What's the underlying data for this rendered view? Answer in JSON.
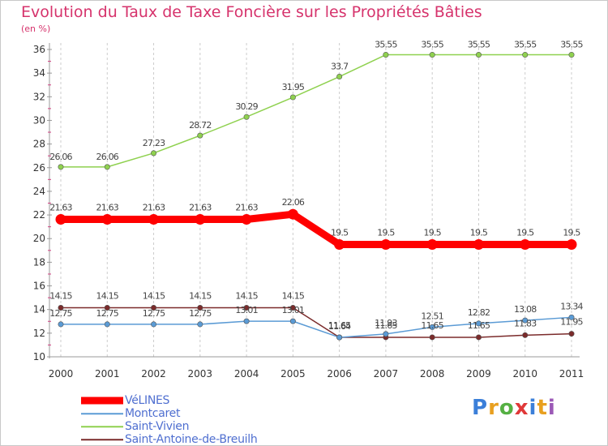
{
  "title": "Evolution du Taux de Taxe Foncière sur les Propriétés Bâties",
  "unit_label": "(en %)",
  "brand": {
    "letters": [
      "P",
      "r",
      "o",
      "x",
      "i",
      "t",
      "i"
    ],
    "colors": [
      "#3b7fd9",
      "#e8a020",
      "#55b043",
      "#e03838",
      "#3b7fd9",
      "#e8a020",
      "#9b59b6"
    ]
  },
  "chart_data": {
    "type": "line",
    "x": [
      "2000",
      "2001",
      "2002",
      "2003",
      "2004",
      "2005",
      "2006",
      "2007",
      "2008",
      "2009",
      "2010",
      "2011"
    ],
    "ylim": [
      10,
      36
    ],
    "yticks": [
      "10",
      "12",
      "14",
      "16",
      "18",
      "20",
      "22",
      "24",
      "26",
      "28",
      "30",
      "32",
      "34",
      "36"
    ],
    "grid": "vertical dashed",
    "legend_position": "bottom-left",
    "series": [
      {
        "name": "VéLINES",
        "color": "#ff0000",
        "values": [
          21.63,
          21.63,
          21.63,
          21.63,
          21.63,
          22.06,
          19.5,
          19.5,
          19.5,
          19.5,
          19.5,
          19.5
        ],
        "labels": [
          "21.63",
          "21.63",
          "21.63",
          "21.63",
          "21.63",
          "22.06",
          "19.5",
          "19.5",
          "19.5",
          "19.5",
          "19.5",
          "19.5"
        ]
      },
      {
        "name": "Montcaret",
        "color": "#5b9bd5",
        "values": [
          12.75,
          12.75,
          12.75,
          12.75,
          13.01,
          13.01,
          11.64,
          11.93,
          12.51,
          12.82,
          13.08,
          13.34
        ],
        "labels": [
          "12.75",
          "12.75",
          "12.75",
          "12.75",
          "13.01",
          "13.01",
          "11.64",
          "11.93",
          "12.51",
          "12.82",
          "13.08",
          "13.34"
        ]
      },
      {
        "name": "Saint-Vivien",
        "color": "#8fd14f",
        "values": [
          26.06,
          26.06,
          27.23,
          28.72,
          30.29,
          31.95,
          33.7,
          35.55,
          35.55,
          35.55,
          35.55,
          35.55
        ],
        "labels": [
          "26.06",
          "26.06",
          "27.23",
          "28.72",
          "30.29",
          "31.95",
          "33.7",
          "35.55",
          "35.55",
          "35.55",
          "35.55",
          "35.55"
        ]
      },
      {
        "name": "Saint-Antoine-de-Breuilh",
        "color": "#7b2b2b",
        "values": [
          14.15,
          14.15,
          14.15,
          14.15,
          14.15,
          14.15,
          11.65,
          11.65,
          11.65,
          11.65,
          11.83,
          11.95
        ],
        "labels": [
          "14.15",
          "14.15",
          "14.15",
          "14.15",
          "14.15",
          "14.15",
          "11.65",
          "11.65",
          "11.65",
          "11.65",
          "11.83",
          "11.95"
        ]
      }
    ]
  }
}
